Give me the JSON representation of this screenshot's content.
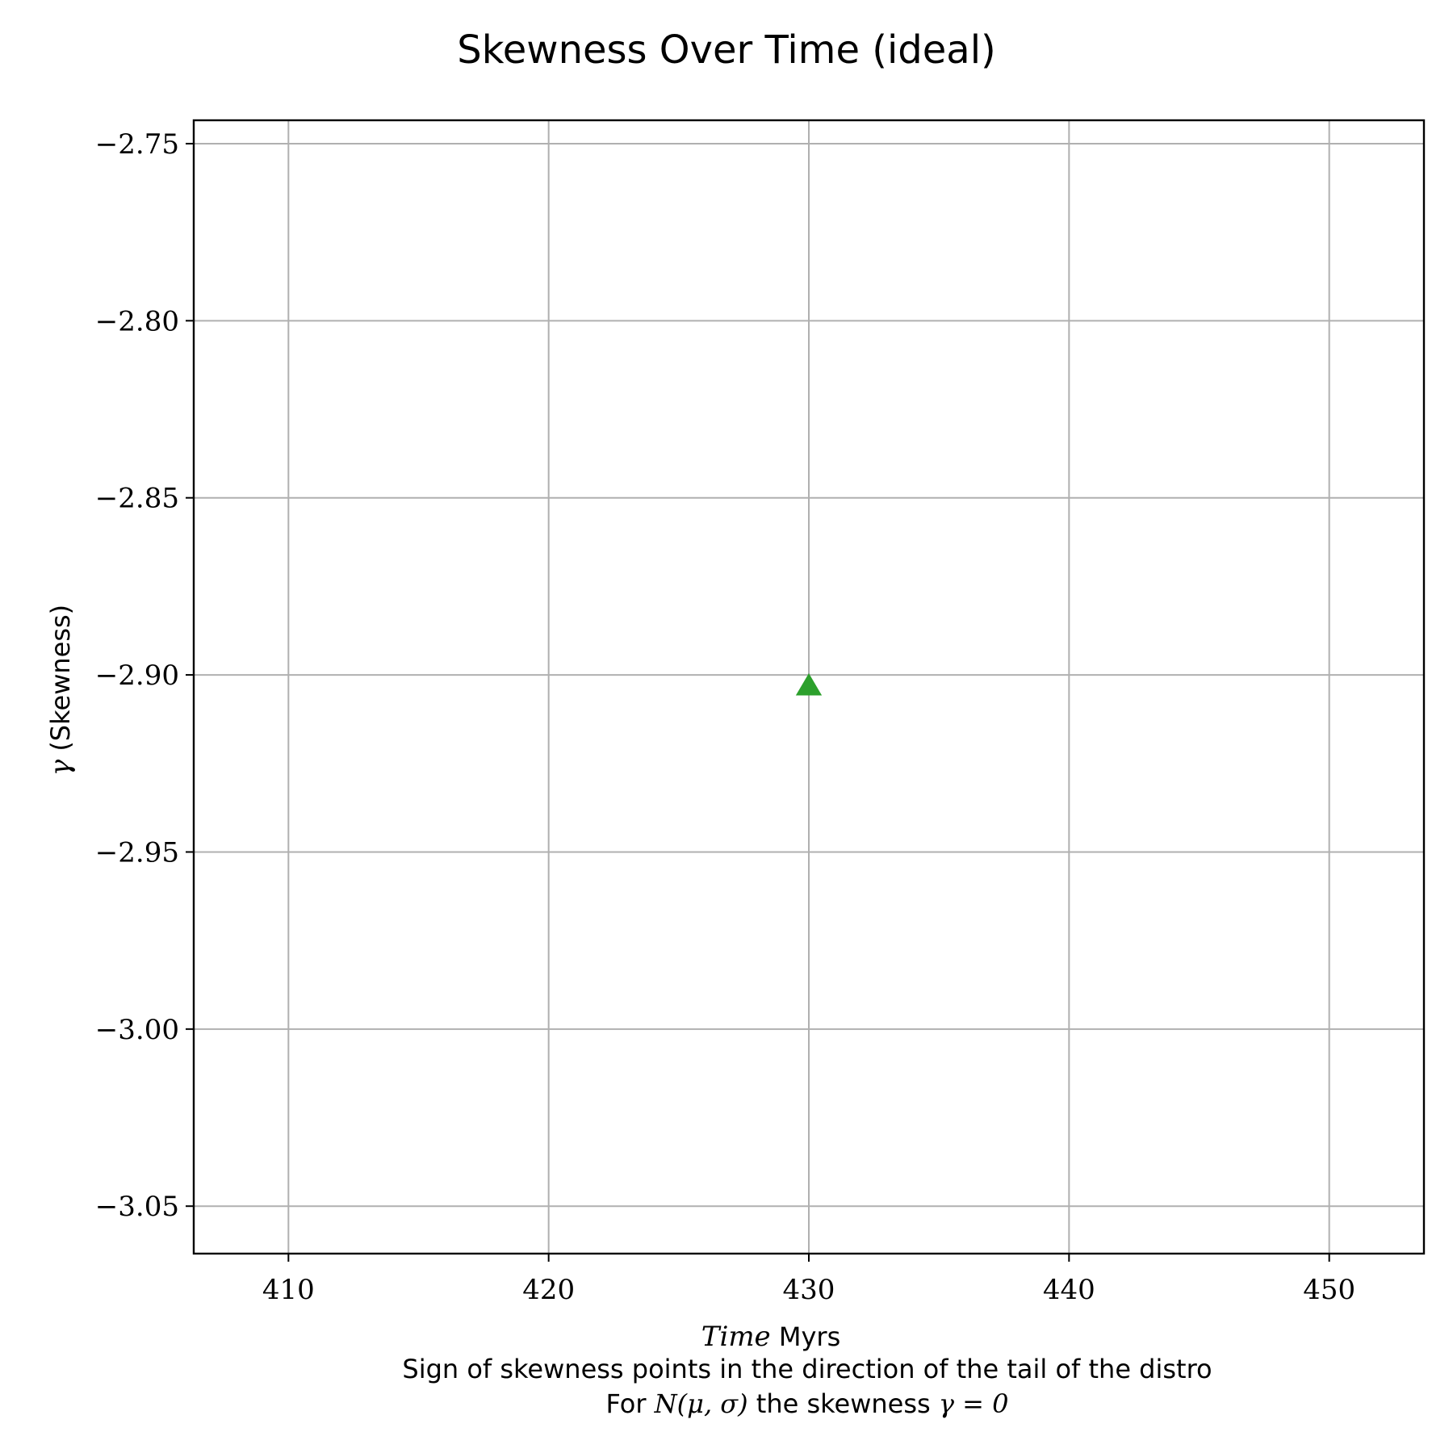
{
  "chart_data": {
    "type": "scatter",
    "title": "Skewness Over Time (ideal)",
    "xlabel": {
      "math": "Time",
      "text": " Myrs"
    },
    "ylabel": {
      "math": "γ",
      "text": " (Skewness)"
    },
    "notes": [
      {
        "text_before": "Sign of skewness points in the direction of the tail of the distro",
        "math": "",
        "text_after": ""
      },
      {
        "text_before": "For ",
        "math": "N(μ, σ)",
        "text_after": " the skewness ",
        "math2": "γ = 0"
      }
    ],
    "xlim": [
      406.36,
      453.64
    ],
    "ylim": [
      -3.0634,
      -2.7434
    ],
    "xticks": [
      410,
      420,
      430,
      440,
      450
    ],
    "xtick_labels": [
      "410",
      "420",
      "430",
      "440",
      "450"
    ],
    "yticks": [
      -2.75,
      -2.8,
      -2.85,
      -2.9,
      -2.95,
      -3.0,
      -3.05
    ],
    "ytick_labels": [
      "−2.75",
      "−2.80",
      "−2.85",
      "−2.90",
      "−2.95",
      "−3.00",
      "−3.05"
    ],
    "grid": true,
    "series": [
      {
        "marker": "triangle-up",
        "color": "#2ca02c",
        "points": [
          {
            "x": 430,
            "y": -2.9034
          }
        ]
      }
    ]
  }
}
